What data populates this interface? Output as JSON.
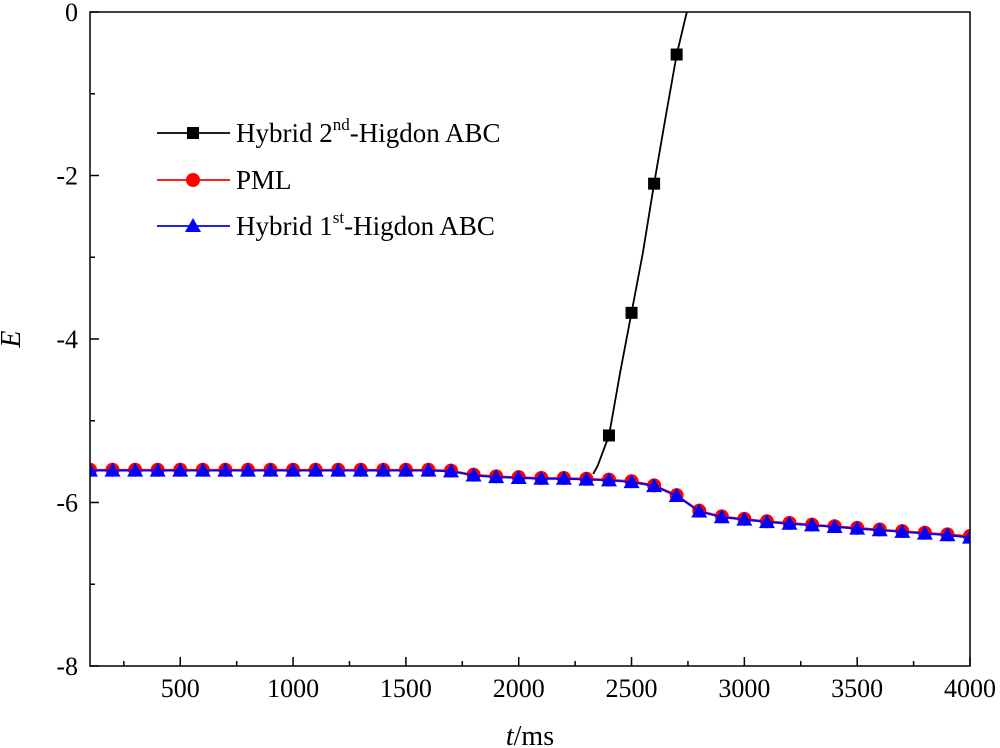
{
  "chart_data": {
    "type": "line",
    "xlabel": {
      "italic": "t",
      "rest": "/ms"
    },
    "ylabel": "E",
    "xlim": [
      100,
      4000
    ],
    "ylim": [
      -8,
      0
    ],
    "xticks": [
      500,
      1000,
      1500,
      2000,
      2500,
      3000,
      3500,
      4000
    ],
    "xtick_labels": [
      "500",
      "1000",
      "1500",
      "2000",
      "2500",
      "3000",
      "3500",
      "4000"
    ],
    "yticks": [
      -8,
      -6,
      -4,
      -2,
      0
    ],
    "ytick_labels": [
      "-8",
      "-6",
      "-4",
      "-2",
      "0"
    ],
    "grid": false,
    "legend_position": "top-left",
    "series": [
      {
        "name": "Hybrid 2nd-Higdon ABC",
        "legend": {
          "pre": "Hybrid 2",
          "sup": "nd",
          "post": "-Higdon ABC"
        },
        "color": "#000000",
        "marker": "square",
        "x": [
          2330,
          2350,
          2400,
          2450,
          2500,
          2550,
          2600,
          2650,
          2700,
          2745
        ],
        "y": [
          -5.65,
          -5.55,
          -5.18,
          -4.4,
          -3.68,
          -2.95,
          -2.1,
          -1.3,
          -0.52,
          0
        ],
        "marker_x": [
          2400,
          2500,
          2600,
          2700
        ],
        "marker_y": [
          -5.18,
          -3.68,
          -2.1,
          -0.52
        ]
      },
      {
        "name": "PML",
        "legend": {
          "pre": "PML",
          "sup": "",
          "post": ""
        },
        "color": "#ff0000",
        "marker": "circle",
        "x": [
          100,
          200,
          300,
          400,
          500,
          600,
          700,
          800,
          900,
          1000,
          1100,
          1200,
          1300,
          1400,
          1500,
          1600,
          1700,
          1800,
          1900,
          2000,
          2100,
          2200,
          2300,
          2400,
          2500,
          2600,
          2700,
          2800,
          2900,
          3000,
          3100,
          3200,
          3300,
          3400,
          3500,
          3600,
          3700,
          3800,
          3900,
          4000
        ],
        "y": [
          -5.6,
          -5.6,
          -5.6,
          -5.6,
          -5.6,
          -5.6,
          -5.6,
          -5.6,
          -5.6,
          -5.6,
          -5.6,
          -5.6,
          -5.6,
          -5.6,
          -5.6,
          -5.6,
          -5.61,
          -5.66,
          -5.68,
          -5.69,
          -5.7,
          -5.7,
          -5.71,
          -5.72,
          -5.74,
          -5.79,
          -5.91,
          -6.1,
          -6.17,
          -6.2,
          -6.23,
          -6.25,
          -6.27,
          -6.29,
          -6.31,
          -6.33,
          -6.35,
          -6.37,
          -6.39,
          -6.41
        ],
        "marker_x": [
          100,
          200,
          300,
          400,
          500,
          600,
          700,
          800,
          900,
          1000,
          1100,
          1200,
          1300,
          1400,
          1500,
          1600,
          1700,
          1800,
          1900,
          2000,
          2100,
          2200,
          2300,
          2400,
          2500,
          2600,
          2700,
          2800,
          2900,
          3000,
          3100,
          3200,
          3300,
          3400,
          3500,
          3600,
          3700,
          3800,
          3900,
          4000
        ],
        "marker_y": [
          -5.6,
          -5.6,
          -5.6,
          -5.6,
          -5.6,
          -5.6,
          -5.6,
          -5.6,
          -5.6,
          -5.6,
          -5.6,
          -5.6,
          -5.6,
          -5.6,
          -5.6,
          -5.6,
          -5.61,
          -5.66,
          -5.68,
          -5.69,
          -5.7,
          -5.7,
          -5.71,
          -5.72,
          -5.74,
          -5.79,
          -5.91,
          -6.1,
          -6.17,
          -6.2,
          -6.23,
          -6.25,
          -6.27,
          -6.29,
          -6.31,
          -6.33,
          -6.35,
          -6.37,
          -6.39,
          -6.41
        ]
      },
      {
        "name": "Hybrid 1st-Higdon ABC",
        "legend": {
          "pre": "Hybrid 1",
          "sup": "st",
          "post": "-Higdon ABC"
        },
        "color": "#0000ff",
        "marker": "triangle",
        "x": [
          100,
          200,
          300,
          400,
          500,
          600,
          700,
          800,
          900,
          1000,
          1100,
          1200,
          1300,
          1400,
          1500,
          1600,
          1700,
          1800,
          1900,
          2000,
          2100,
          2200,
          2300,
          2400,
          2500,
          2600,
          2700,
          2800,
          2900,
          3000,
          3100,
          3200,
          3300,
          3400,
          3500,
          3600,
          3700,
          3800,
          3900,
          4000
        ],
        "y": [
          -5.61,
          -5.61,
          -5.61,
          -5.61,
          -5.61,
          -5.61,
          -5.61,
          -5.61,
          -5.61,
          -5.61,
          -5.61,
          -5.61,
          -5.61,
          -5.61,
          -5.61,
          -5.61,
          -5.62,
          -5.67,
          -5.69,
          -5.7,
          -5.71,
          -5.71,
          -5.72,
          -5.73,
          -5.75,
          -5.8,
          -5.92,
          -6.11,
          -6.18,
          -6.21,
          -6.24,
          -6.26,
          -6.28,
          -6.3,
          -6.32,
          -6.34,
          -6.36,
          -6.38,
          -6.4,
          -6.43
        ],
        "marker_x": [
          100,
          200,
          300,
          400,
          500,
          600,
          700,
          800,
          900,
          1000,
          1100,
          1200,
          1300,
          1400,
          1500,
          1600,
          1700,
          1800,
          1900,
          2000,
          2100,
          2200,
          2300,
          2400,
          2500,
          2600,
          2700,
          2800,
          2900,
          3000,
          3100,
          3200,
          3300,
          3400,
          3500,
          3600,
          3700,
          3800,
          3900,
          4000
        ],
        "marker_y": [
          -5.61,
          -5.61,
          -5.61,
          -5.61,
          -5.61,
          -5.61,
          -5.61,
          -5.61,
          -5.61,
          -5.61,
          -5.61,
          -5.61,
          -5.61,
          -5.61,
          -5.61,
          -5.61,
          -5.62,
          -5.67,
          -5.69,
          -5.7,
          -5.71,
          -5.71,
          -5.72,
          -5.73,
          -5.75,
          -5.8,
          -5.92,
          -6.11,
          -6.18,
          -6.21,
          -6.24,
          -6.26,
          -6.28,
          -6.3,
          -6.32,
          -6.34,
          -6.36,
          -6.38,
          -6.4,
          -6.43
        ]
      }
    ]
  }
}
